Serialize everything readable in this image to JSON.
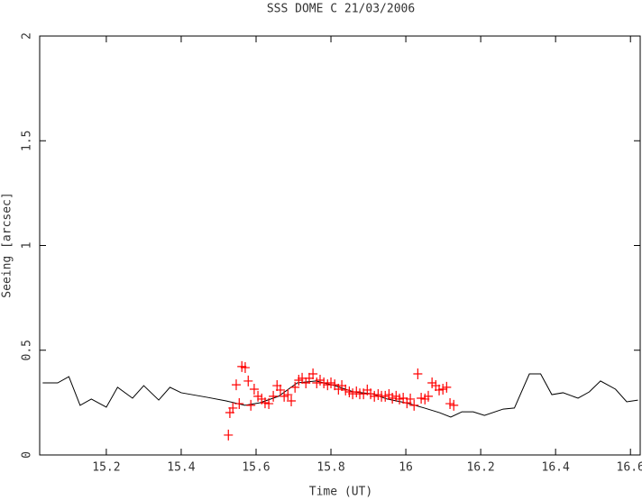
{
  "chart_data": {
    "type": "line",
    "title": "SSS   DOME C 21/03/2006",
    "x_label": "Time (UT)",
    "y_label": "Seeing [arcsec]",
    "xlim": [
      15.022,
      16.626
    ],
    "ylim": [
      0,
      2
    ],
    "xticks": [
      15.2,
      15.4,
      15.6,
      15.8,
      16,
      16.2,
      16.4,
      16.6
    ],
    "yticks": [
      0,
      0.5,
      1,
      1.5,
      2
    ],
    "series": [
      {
        "color": "#000000",
        "marker": "none",
        "x": [
          15.03,
          15.07,
          15.1,
          15.13,
          15.16,
          15.2,
          15.23,
          15.27,
          15.3,
          15.34,
          15.37,
          15.4,
          15.47,
          15.52,
          15.57,
          15.61,
          15.66,
          15.71,
          15.76,
          15.81,
          15.86,
          15.91,
          15.95,
          16.0,
          16.05,
          16.09,
          16.12,
          16.15,
          16.18,
          16.21,
          16.26,
          16.29,
          16.33,
          16.36,
          16.39,
          16.42,
          16.46,
          16.49,
          16.52,
          16.56,
          16.59,
          16.62
        ],
        "values": [
          0.344,
          0.344,
          0.374,
          0.237,
          0.267,
          0.228,
          0.323,
          0.271,
          0.331,
          0.262,
          0.323,
          0.297,
          0.275,
          0.258,
          0.237,
          0.249,
          0.28,
          0.344,
          0.353,
          0.331,
          0.301,
          0.292,
          0.267,
          0.249,
          0.224,
          0.202,
          0.181,
          0.206,
          0.206,
          0.189,
          0.219,
          0.224,
          0.387,
          0.387,
          0.288,
          0.297,
          0.271,
          0.301,
          0.353,
          0.314,
          0.254,
          0.262
        ]
      },
      {
        "color": "#ff0000",
        "marker": "plus",
        "x": [
          15.526,
          15.53,
          15.538,
          15.547,
          15.555,
          15.562,
          15.571,
          15.579,
          15.586,
          15.595,
          15.605,
          15.615,
          15.624,
          15.634,
          15.646,
          15.656,
          15.665,
          15.675,
          15.685,
          15.694,
          15.704,
          15.714,
          15.723,
          15.733,
          15.742,
          15.752,
          15.762,
          15.771,
          15.781,
          15.791,
          15.8,
          15.81,
          15.82,
          15.829,
          15.839,
          15.849,
          15.858,
          15.868,
          15.877,
          15.887,
          15.897,
          15.906,
          15.916,
          15.926,
          15.935,
          15.945,
          15.955,
          15.964,
          15.974,
          15.983,
          15.993,
          16.003,
          16.012,
          16.022,
          16.032,
          16.041,
          16.051,
          16.06,
          16.07,
          16.08,
          16.089,
          16.099,
          16.109,
          16.118,
          16.128
        ],
        "values": [
          0.095,
          0.202,
          0.224,
          0.335,
          0.245,
          0.422,
          0.417,
          0.353,
          0.237,
          0.314,
          0.28,
          0.267,
          0.249,
          0.245,
          0.28,
          0.331,
          0.31,
          0.28,
          0.288,
          0.258,
          0.323,
          0.357,
          0.366,
          0.344,
          0.366,
          0.387,
          0.344,
          0.357,
          0.344,
          0.335,
          0.344,
          0.335,
          0.314,
          0.331,
          0.31,
          0.301,
          0.292,
          0.301,
          0.292,
          0.292,
          0.31,
          0.292,
          0.28,
          0.288,
          0.28,
          0.28,
          0.288,
          0.271,
          0.28,
          0.267,
          0.271,
          0.249,
          0.267,
          0.237,
          0.387,
          0.271,
          0.267,
          0.28,
          0.344,
          0.331,
          0.31,
          0.314,
          0.323,
          0.245,
          0.237
        ]
      }
    ]
  }
}
